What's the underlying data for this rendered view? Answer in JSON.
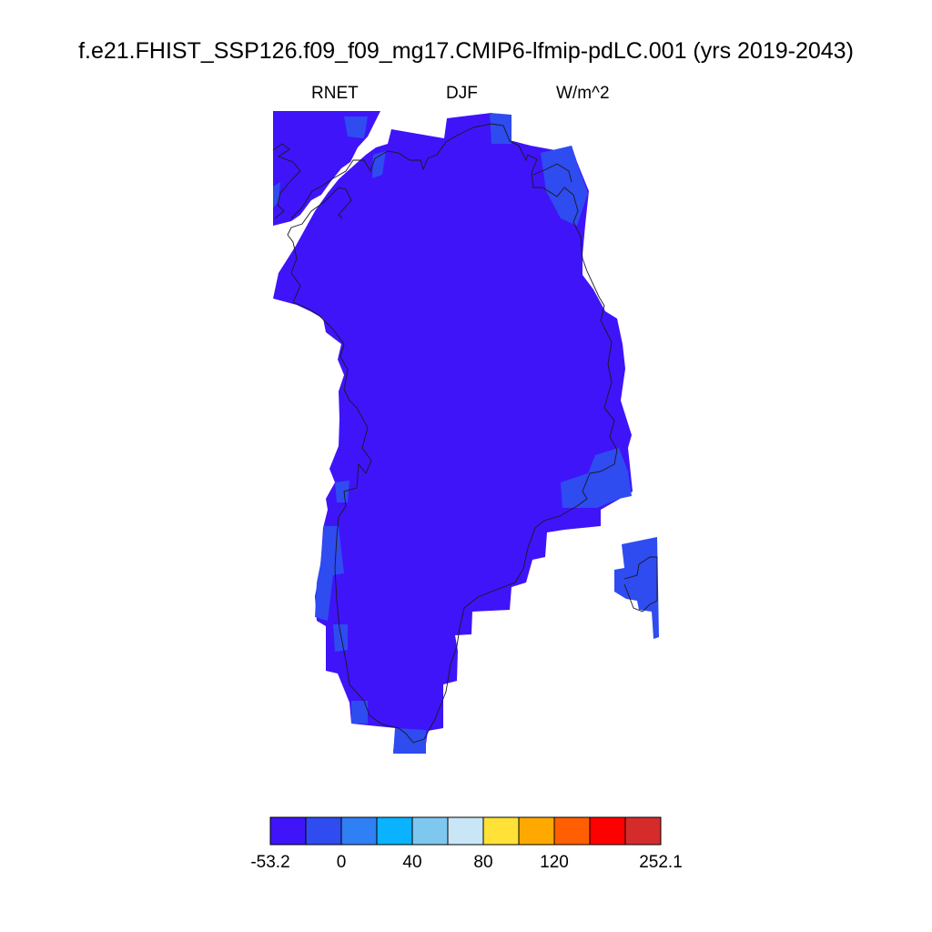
{
  "title": "f.e21.FHIST_SSP126.f09_f09_mg17.CMIP6-lfmip-pdLC.001 (yrs 2019-2043)",
  "subtitle": {
    "variable": "RNET",
    "season": "DJF",
    "units": "W/m^2"
  },
  "colors": {
    "land_dominant": "#3f14f9",
    "land_secondary": "#2e4cf0",
    "coastline": "#1a1a1a"
  },
  "colorbar": {
    "colors": [
      "#3f14f9",
      "#2e4cf0",
      "#2f7ff5",
      "#0bb2ff",
      "#7ec8f0",
      "#c8e6f6",
      "#ffe137",
      "#ffa900",
      "#ff5f00",
      "#ff0000",
      "#d62b2b"
    ],
    "labels": [
      {
        "text": "-53.2",
        "boundary": 0
      },
      {
        "text": "0",
        "boundary": 2
      },
      {
        "text": "40",
        "boundary": 4
      },
      {
        "text": "80",
        "boundary": 6
      },
      {
        "text": "120",
        "boundary": 8
      },
      {
        "text": "252.1",
        "boundary": 11
      }
    ]
  }
}
